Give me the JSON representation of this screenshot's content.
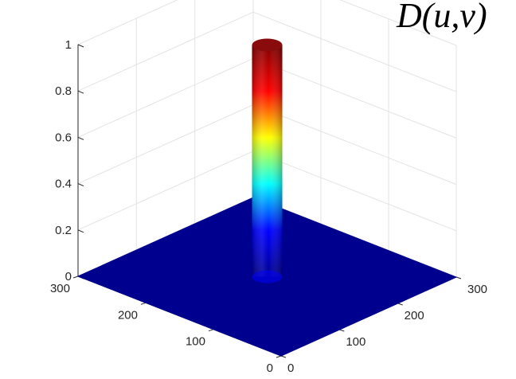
{
  "chart_data": {
    "type": "surface3d",
    "title": "D(u,v)",
    "xlabel": "",
    "ylabel": "",
    "zlabel": "",
    "grid": true,
    "colormap": "jet",
    "colormap_colors": [
      "#00008f",
      "#0000ff",
      "#00ffff",
      "#ffff00",
      "#ff0000",
      "#800000"
    ],
    "x_ticks": [
      "0",
      "100",
      "200",
      "300"
    ],
    "y_ticks": [
      "0",
      "100",
      "200",
      "300"
    ],
    "z_ticks": [
      "0",
      "0.2",
      "0.4",
      "0.6",
      "0.8",
      "1"
    ],
    "xlim": [
      0,
      300
    ],
    "ylim": [
      0,
      300
    ],
    "zlim": [
      0,
      1
    ],
    "surface": {
      "description_type": "ideal_lowpass_cylinder",
      "floor_value": 0,
      "peak_value": 1,
      "center": [
        150,
        150
      ],
      "radius": 15
    }
  }
}
